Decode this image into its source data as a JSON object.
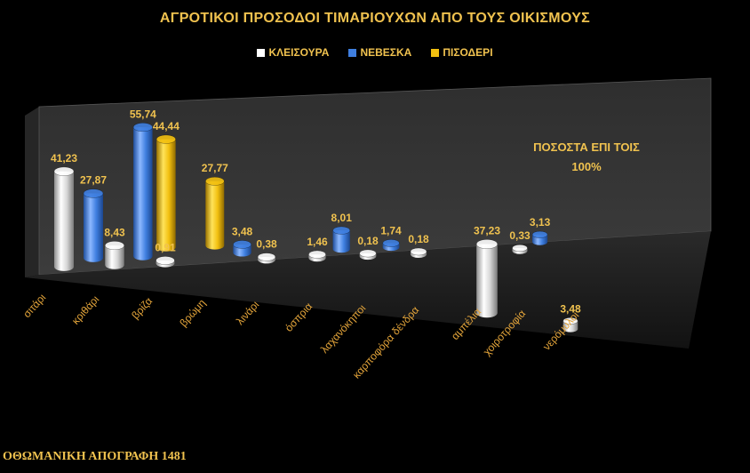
{
  "chart_data": {
    "type": "bar",
    "title": "ΑΓΡΟΤΙΚΟΙ ΠΡΟΣΟΔΟΙ ΤΙΜΑΡΙΟΥΧΩΝ ΑΠΟ ΤΟΥΣ ΟΙΚΙΣΜΟΥΣ",
    "legend_position": "top",
    "annotation": [
      "ΠΟΣΟΣΤΑ ΕΠΙ ΤΟΙΣ",
      "100%"
    ],
    "categories": [
      "σιτάρι",
      "κριθάρι",
      "βρίζα",
      "βρώμη",
      "λινάρι",
      "όσπρια",
      "λαχανόκηποι",
      "καρποφόρα δένδρα",
      "αμπέλια",
      "χοιροτροφία",
      "νερόμυλοι"
    ],
    "series": [
      {
        "name": "ΚΛΕΙΣΟΥΡΑ",
        "color": "#ffffff",
        "values": [
          41.23,
          8.43,
          0.91,
          null,
          0.38,
          1.46,
          0.18,
          0.18,
          37.23,
          0.33,
          3.48
        ]
      },
      {
        "name": "ΝΕΒΕΣΚΑ",
        "color": "#3f7fe0",
        "values": [
          27.87,
          55.74,
          null,
          3.48,
          null,
          8.01,
          1.74,
          null,
          null,
          3.13,
          null
        ]
      },
      {
        "name": "ΠΙΣΟΔΕΡΙ",
        "color": "#f2c010",
        "values": [
          null,
          44.44,
          27.77,
          null,
          null,
          null,
          null,
          null,
          null,
          null,
          null
        ]
      }
    ],
    "value_labels": [
      "41,23",
      "8,43",
      "0,91",
      "0,38",
      "1,46",
      "0,18",
      "0,18",
      "37,23",
      "0,33",
      "3,48",
      "27,87",
      "55,74",
      "3,48",
      "8,01",
      "1,74",
      "3,13",
      "44,44",
      "27,77"
    ],
    "ylim": [
      0,
      60
    ],
    "grid": false
  },
  "footer": "ΟΘΩΜΑΝΙΚΗ ΑΠΟΓΡΑΦΗ 1481"
}
